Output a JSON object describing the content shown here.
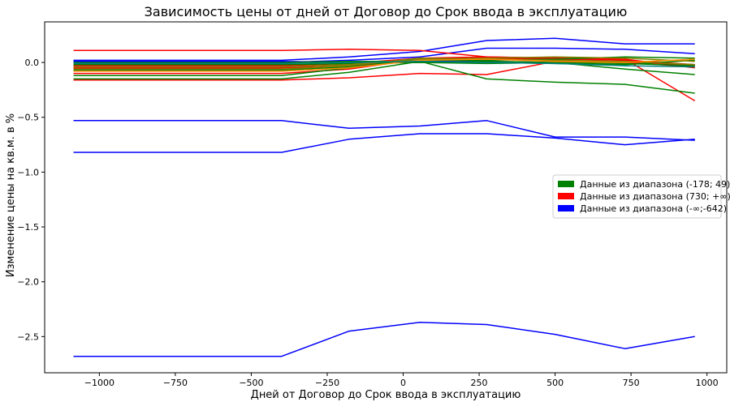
{
  "chart_data": {
    "type": "line",
    "title": "Зависимость цены от дней от Договор до Срок ввода в эксплуатацию",
    "xlabel": "Дней от Договор до Срок ввода в эксплуатацию",
    "ylabel": "Изменение цены на кв.м. в %",
    "xlim": [
      -1180,
      1065
    ],
    "ylim": [
      -2.83,
      0.37
    ],
    "xticks": [
      -1000,
      -750,
      -500,
      -250,
      0,
      250,
      500,
      750,
      1000
    ],
    "xtick_labels": [
      "−1000",
      "−750",
      "−500",
      "−250",
      "0",
      "250",
      "500",
      "750",
      "1000"
    ],
    "yticks": [
      0.0,
      -0.5,
      -1.0,
      -1.5,
      -2.0,
      -2.5
    ],
    "ytick_labels": [
      "0.0",
      "−0.5",
      "−1.0",
      "−1.5",
      "−2.0",
      "−2.5"
    ],
    "grid": false,
    "legend_position": "center-right",
    "legend": [
      {
        "label": "Данные из диапазона (-178; 49)",
        "color": "#008000"
      },
      {
        "label": "Данные из диапазона (730; +∞)",
        "color": "#ff0000"
      },
      {
        "label": "Данные из диапазона (-∞;-642)",
        "color": "#0000ff"
      }
    ],
    "x": [
      -1085,
      -400,
      -178,
      55,
      275,
      500,
      730,
      960
    ],
    "series": [
      {
        "color": "#0000ff",
        "values": [
          -2.68,
          -2.68,
          -2.45,
          -2.37,
          -2.39,
          -2.48,
          -2.61,
          -2.5
        ]
      },
      {
        "color": "#0000ff",
        "values": [
          -0.82,
          -0.82,
          -0.7,
          -0.65,
          -0.65,
          -0.69,
          -0.75,
          -0.7
        ]
      },
      {
        "color": "#0000ff",
        "values": [
          -0.53,
          -0.53,
          -0.6,
          -0.58,
          -0.53,
          -0.68,
          -0.68,
          -0.71
        ]
      },
      {
        "color": "#0000ff",
        "values": [
          0.02,
          0.02,
          0.05,
          0.1,
          0.2,
          0.22,
          0.17,
          0.17
        ]
      },
      {
        "color": "#0000ff",
        "values": [
          0.0,
          0.0,
          0.02,
          0.05,
          0.13,
          0.13,
          0.12,
          0.08
        ]
      },
      {
        "color": "#0000ff",
        "values": [
          0.01,
          0.01,
          0.0,
          0.02,
          0.01,
          0.0,
          0.01,
          -0.02
        ]
      },
      {
        "color": "#ff0000",
        "values": [
          0.11,
          0.11,
          0.12,
          0.11,
          0.05,
          0.04,
          0.03,
          -0.35
        ]
      },
      {
        "color": "#ff0000",
        "values": [
          -0.16,
          -0.16,
          -0.14,
          -0.1,
          -0.11,
          0.01,
          0.01,
          -0.03
        ]
      },
      {
        "color": "#ff0000",
        "values": [
          -0.03,
          -0.03,
          -0.01,
          0.04,
          0.05,
          0.04,
          0.03,
          -0.05
        ]
      },
      {
        "color": "#ff0000",
        "values": [
          -0.05,
          -0.05,
          -0.03,
          0.02,
          0.03,
          0.02,
          0.0,
          -0.04
        ]
      },
      {
        "color": "#ff0000",
        "values": [
          -0.1,
          -0.1,
          -0.06,
          0.03,
          0.04,
          0.03,
          0.02,
          -0.02
        ]
      },
      {
        "color": "#008000",
        "values": [
          -0.15,
          -0.15,
          -0.09,
          0.01,
          -0.15,
          -0.18,
          -0.2,
          -0.28
        ]
      },
      {
        "color": "#008000",
        "values": [
          -0.12,
          -0.12,
          -0.05,
          0.03,
          0.01,
          0.0,
          -0.06,
          -0.11
        ]
      },
      {
        "color": "#008000",
        "values": [
          -0.02,
          -0.02,
          -0.01,
          0.0,
          -0.01,
          0.0,
          -0.01,
          -0.03
        ]
      },
      {
        "color": "#008000",
        "values": [
          -0.07,
          -0.07,
          -0.04,
          0.02,
          0.02,
          0.03,
          0.05,
          0.04
        ]
      },
      {
        "color": "#008000",
        "values": [
          0.0,
          0.0,
          0.01,
          0.01,
          0.0,
          -0.01,
          -0.02,
          0.02
        ]
      },
      {
        "color": "#808000",
        "values": [
          -0.04,
          -0.04,
          -0.02,
          0.03,
          0.04,
          0.05,
          0.04,
          0.01
        ]
      },
      {
        "color": "#808000",
        "values": [
          -0.06,
          -0.06,
          -0.03,
          0.04,
          0.03,
          0.02,
          0.01,
          -0.02
        ]
      },
      {
        "color": "#ff8c00",
        "values": [
          -0.08,
          -0.08,
          -0.05,
          0.02,
          0.03,
          0.01,
          0.0,
          0.03
        ]
      },
      {
        "color": "#008080",
        "values": [
          -0.01,
          -0.01,
          0.0,
          0.01,
          0.0,
          -0.01,
          -0.03,
          -0.04
        ]
      }
    ]
  }
}
